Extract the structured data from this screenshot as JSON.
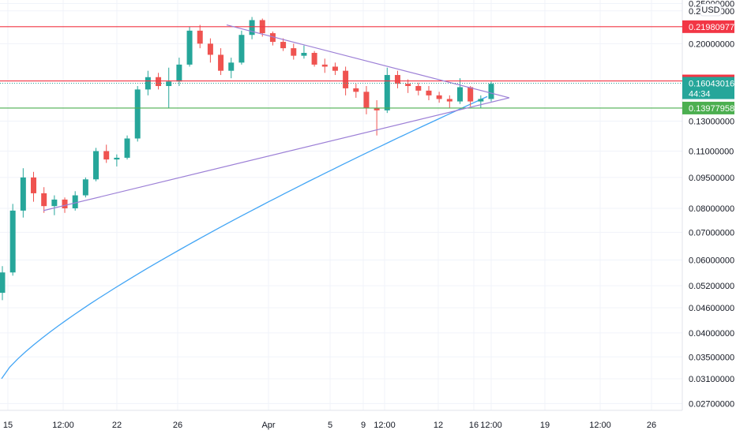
{
  "chart_data": {
    "type": "candlestick",
    "currency": "USD",
    "ylim": [
      0.026,
      0.255
    ],
    "scale": "log",
    "y_ticks": [
      "0.25000000",
      "0.24000000",
      "0.20000000",
      "0.13000000",
      "0.11000000",
      "0.09500000",
      "0.08000000",
      "0.07000000",
      "0.06000000",
      "0.05200000",
      "0.04600000",
      "0.04000000",
      "0.03500000",
      "0.03100000",
      "0.02700000"
    ],
    "x_ticks": [
      "15",
      "12:00",
      "22",
      "26",
      "Apr",
      "5",
      "9",
      "12:00",
      "12",
      "16",
      "12:00",
      "19",
      "12:00",
      "26"
    ],
    "horizontal_lines": [
      {
        "value": 0.21980977,
        "label": "0.21980977",
        "color": "#f23645"
      },
      {
        "value": 0.16254887,
        "label": "0.16254887",
        "color": "#f23645"
      },
      {
        "value": 0.13977958,
        "label": "0.13977958",
        "color": "#4caf50"
      }
    ],
    "last_price": {
      "value": 0.16043016,
      "label": "0.16043016",
      "countdown": "44:34",
      "color": "#26a69a"
    },
    "trendlines": [
      {
        "from": [
          "Mar 27",
          0.222
        ],
        "to": [
          "Apr 16",
          0.148
        ],
        "color": "#9c7fd6"
      },
      {
        "from": [
          "Mar 17",
          0.079
        ],
        "to": [
          "Apr 16",
          0.148
        ],
        "color": "#9c7fd6"
      }
    ],
    "moving_average": {
      "color": "#42a5f5"
    },
    "candles_ohlc": [
      [
        0.05,
        0.058,
        0.048,
        0.056
      ],
      [
        0.056,
        0.082,
        0.055,
        0.079
      ],
      [
        0.079,
        0.1,
        0.076,
        0.095
      ],
      [
        0.095,
        0.098,
        0.083,
        0.087
      ],
      [
        0.087,
        0.09,
        0.078,
        0.081
      ],
      [
        0.081,
        0.086,
        0.077,
        0.084
      ],
      [
        0.084,
        0.085,
        0.078,
        0.08
      ],
      [
        0.08,
        0.088,
        0.079,
        0.086
      ],
      [
        0.086,
        0.095,
        0.085,
        0.094
      ],
      [
        0.094,
        0.112,
        0.093,
        0.11
      ],
      [
        0.11,
        0.114,
        0.103,
        0.105
      ],
      [
        0.105,
        0.108,
        0.101,
        0.106
      ],
      [
        0.106,
        0.12,
        0.105,
        0.118
      ],
      [
        0.118,
        0.158,
        0.116,
        0.155
      ],
      [
        0.155,
        0.172,
        0.15,
        0.166
      ],
      [
        0.166,
        0.17,
        0.155,
        0.158
      ],
      [
        0.158,
        0.175,
        0.14,
        0.162
      ],
      [
        0.162,
        0.185,
        0.158,
        0.178
      ],
      [
        0.178,
        0.22,
        0.176,
        0.215
      ],
      [
        0.215,
        0.222,
        0.195,
        0.2
      ],
      [
        0.2,
        0.206,
        0.18,
        0.188
      ],
      [
        0.188,
        0.195,
        0.168,
        0.172
      ],
      [
        0.172,
        0.185,
        0.165,
        0.18
      ],
      [
        0.18,
        0.215,
        0.178,
        0.21
      ],
      [
        0.21,
        0.232,
        0.205,
        0.228
      ],
      [
        0.228,
        0.23,
        0.208,
        0.212
      ],
      [
        0.212,
        0.214,
        0.198,
        0.202
      ],
      [
        0.202,
        0.206,
        0.192,
        0.195
      ],
      [
        0.195,
        0.2,
        0.183,
        0.187
      ],
      [
        0.187,
        0.198,
        0.184,
        0.19
      ],
      [
        0.19,
        0.192,
        0.176,
        0.178
      ],
      [
        0.178,
        0.184,
        0.17,
        0.176
      ],
      [
        0.176,
        0.18,
        0.168,
        0.172
      ],
      [
        0.172,
        0.176,
        0.15,
        0.156
      ],
      [
        0.156,
        0.16,
        0.148,
        0.153
      ],
      [
        0.153,
        0.158,
        0.135,
        0.14
      ],
      [
        0.14,
        0.146,
        0.12,
        0.138
      ],
      [
        0.138,
        0.175,
        0.136,
        0.168
      ],
      [
        0.168,
        0.172,
        0.156,
        0.16
      ],
      [
        0.16,
        0.164,
        0.152,
        0.158
      ],
      [
        0.158,
        0.161,
        0.15,
        0.154
      ],
      [
        0.154,
        0.158,
        0.146,
        0.15
      ],
      [
        0.15,
        0.153,
        0.144,
        0.147
      ],
      [
        0.147,
        0.15,
        0.14,
        0.145
      ],
      [
        0.145,
        0.165,
        0.143,
        0.157
      ],
      [
        0.157,
        0.158,
        0.141,
        0.145
      ],
      [
        0.145,
        0.15,
        0.14,
        0.147
      ],
      [
        0.147,
        0.162,
        0.145,
        0.16
      ]
    ]
  },
  "colors": {
    "up": "#26a69a",
    "down": "#ef5350",
    "grid": "#f0f3fa",
    "axis_text": "#131722",
    "border": "#e0e3eb"
  }
}
